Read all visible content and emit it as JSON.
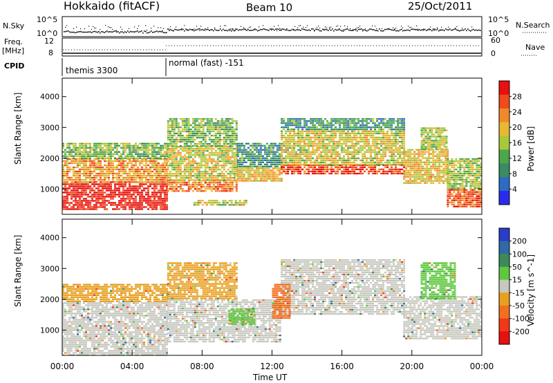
{
  "header": {
    "station": "Hokkaido (fitACF)",
    "beam": "Beam 10",
    "date": "25/Oct/2011"
  },
  "strips": {
    "nsky_label": "N.Sky",
    "nsearch_label": "N.Search",
    "nsky_ticks": [
      "10^5",
      "10^0"
    ],
    "nsearch_ticks": [
      "10^5",
      "10^0"
    ],
    "freq_label_1": "Freq.",
    "freq_label_2": "[MHz]",
    "freq_ticks": [
      "12",
      "8"
    ],
    "nave_label": "Nave",
    "nave_ticks": [
      "60",
      "0"
    ],
    "cpid_label": "CPID",
    "cpid_segments": [
      {
        "label": "themis 3300",
        "start": 0,
        "end": 6
      },
      {
        "label": "normal (fast) -151",
        "start": 6,
        "end": 24
      }
    ]
  },
  "chart_data": [
    {
      "type": "heatmap",
      "xlabel": "Time UT",
      "ylabel": "Slant Range [km]",
      "x_ticks": [
        "00:00",
        "04:00",
        "08:00",
        "12:00",
        "16:00",
        "20:00",
        "00:00"
      ],
      "xlim": [
        0,
        24
      ],
      "ylim": [
        180,
        4600
      ],
      "y_ticks": [
        1000,
        2000,
        3000,
        4000
      ],
      "colorbar": {
        "label": "Power [dB]",
        "ticks": [
          4,
          8,
          12,
          16,
          20,
          24,
          28
        ],
        "range": [
          0,
          32
        ],
        "colors": [
          "#2b2bf0",
          "#2d6cc4",
          "#3b8a66",
          "#4aa84a",
          "#a8c83a",
          "#e8b834",
          "#f08a28",
          "#f04a1c",
          "#e81010"
        ]
      },
      "regions": [
        {
          "t0": 0.0,
          "t1": 6.0,
          "r0": 350,
          "r1": 1250,
          "value": 30
        },
        {
          "t0": 0.0,
          "t1": 6.0,
          "r0": 1250,
          "r1": 2000,
          "value": 22
        },
        {
          "t0": 0.0,
          "t1": 6.0,
          "r0": 2000,
          "r1": 2500,
          "value": 14
        },
        {
          "t0": 6.0,
          "t1": 10.0,
          "r0": 900,
          "r1": 1300,
          "value": 24
        },
        {
          "t0": 6.0,
          "t1": 10.0,
          "r0": 1300,
          "r1": 2400,
          "value": 18
        },
        {
          "t0": 6.0,
          "t1": 10.0,
          "r0": 2400,
          "r1": 3300,
          "value": 14
        },
        {
          "t0": 7.5,
          "t1": 10.5,
          "r0": 450,
          "r1": 650,
          "value": 18
        },
        {
          "t0": 10.0,
          "t1": 12.5,
          "r0": 1250,
          "r1": 1700,
          "value": 20
        },
        {
          "t0": 10.0,
          "t1": 12.5,
          "r0": 1700,
          "r1": 2500,
          "value": 10
        },
        {
          "t0": 12.5,
          "t1": 19.5,
          "r0": 1500,
          "r1": 1800,
          "value": 28
        },
        {
          "t0": 12.5,
          "t1": 19.5,
          "r0": 1800,
          "r1": 2900,
          "value": 18
        },
        {
          "t0": 12.5,
          "t1": 19.5,
          "r0": 2900,
          "r1": 3300,
          "value": 10
        },
        {
          "t0": 19.5,
          "t1": 22.0,
          "r0": 1200,
          "r1": 2300,
          "value": 20
        },
        {
          "t0": 20.5,
          "t1": 22.0,
          "r0": 2300,
          "r1": 3000,
          "value": 16
        },
        {
          "t0": 22.0,
          "t1": 24.0,
          "r0": 400,
          "r1": 1000,
          "value": 26
        },
        {
          "t0": 22.0,
          "t1": 24.0,
          "r0": 1000,
          "r1": 2000,
          "value": 16
        }
      ]
    },
    {
      "type": "heatmap",
      "xlabel": "Time UT",
      "ylabel": "Slant Range [km]",
      "x_ticks": [
        "00:00",
        "04:00",
        "08:00",
        "12:00",
        "16:00",
        "20:00",
        "00:00"
      ],
      "xlim": [
        0,
        24
      ],
      "ylim": [
        180,
        4600
      ],
      "y_ticks": [
        1000,
        2000,
        3000,
        4000
      ],
      "colorbar": {
        "label": "Velocity [m s^-1]",
        "ticks": [
          "200",
          "100",
          "50",
          "15",
          "-15",
          "-50",
          "-100",
          "-200"
        ],
        "colors": [
          "#2a3cc8",
          "#2f6aa4",
          "#3c8a5a",
          "#5ec83c",
          "#c8c8c0",
          "#e8a020",
          "#f07020",
          "#f03818",
          "#e81010"
        ]
      },
      "regions": [
        {
          "t0": 0.0,
          "t1": 6.0,
          "r0": 200,
          "r1": 1900,
          "value": 0
        },
        {
          "t0": 0.0,
          "t1": 6.0,
          "r0": 1900,
          "r1": 2500,
          "value": -30
        },
        {
          "t0": 6.0,
          "t1": 12.5,
          "r0": 600,
          "r1": 2000,
          "value": 0
        },
        {
          "t0": 6.0,
          "t1": 10.0,
          "r0": 2000,
          "r1": 3200,
          "value": -30
        },
        {
          "t0": 9.5,
          "t1": 11.0,
          "r0": 1200,
          "r1": 1700,
          "value": 30
        },
        {
          "t0": 12.5,
          "t1": 19.5,
          "r0": 1500,
          "r1": 3300,
          "value": 0
        },
        {
          "t0": 12.0,
          "t1": 13.0,
          "r0": 1400,
          "r1": 2500,
          "value": -60
        },
        {
          "t0": 19.5,
          "t1": 24.0,
          "r0": 700,
          "r1": 2100,
          "value": 0
        },
        {
          "t0": 20.5,
          "t1": 22.5,
          "r0": 2000,
          "r1": 3200,
          "value": 30
        }
      ]
    }
  ]
}
